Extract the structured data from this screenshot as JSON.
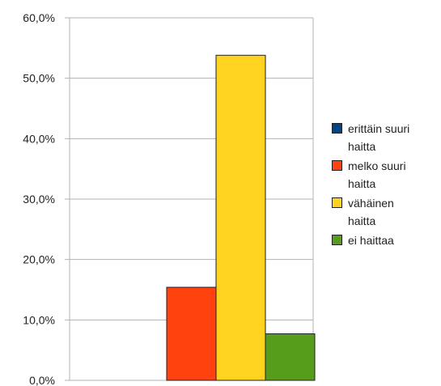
{
  "chart_data": {
    "type": "bar",
    "categories": [
      ""
    ],
    "series": [
      {
        "name": "erittäin suuri\nhaitta",
        "values": [
          0.0
        ],
        "color": "#004586"
      },
      {
        "name": "melko suuri\nhaitta",
        "values": [
          15.4
        ],
        "color": "#ff420e"
      },
      {
        "name": "vähäinen\nhaitta",
        "values": [
          53.8
        ],
        "color": "#ffd320"
      },
      {
        "name": "ei haittaa",
        "values": [
          7.7
        ],
        "color": "#579d1c"
      }
    ],
    "ylim": [
      0,
      60
    ],
    "yticks": [
      "0,0%",
      "10,0%",
      "20,0%",
      "30,0%",
      "40,0%",
      "50,0%",
      "60,0%"
    ],
    "grid": true,
    "legend_position": "right"
  }
}
